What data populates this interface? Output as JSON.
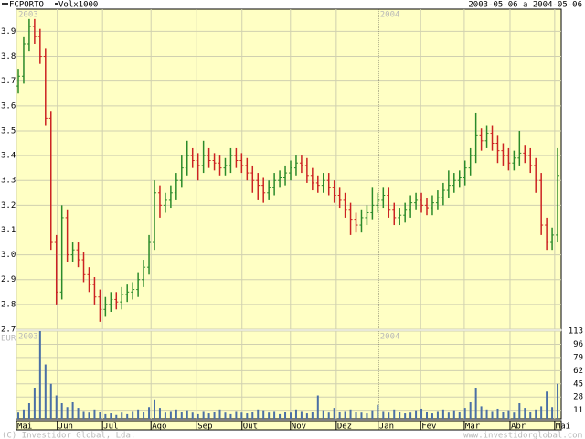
{
  "chart_data": {
    "type": "ohlc",
    "title": "FCPORTO",
    "volume_title": "Volx1000",
    "date_range": "2003-05-06 a 2004-05-06",
    "year_labels": [
      "2003",
      "2004"
    ],
    "currency": "EUR",
    "footer_left": "(C) Investidor Global, Lda.",
    "footer_right": "www.investidorglobal.com",
    "up_color": "#2a8a2a",
    "down_color": "#cc2222",
    "volume_color": "#4a6fa5",
    "grid": true,
    "xlim": [
      0,
      100
    ],
    "year_break": 66.4,
    "xticks": [
      {
        "value": 0,
        "label": "Mai"
      },
      {
        "value": 7.5,
        "label": "Jun"
      },
      {
        "value": 15.8,
        "label": "Jul"
      },
      {
        "value": 24.7,
        "label": "Ago"
      },
      {
        "value": 33.1,
        "label": "Sep"
      },
      {
        "value": 41.4,
        "label": "Out"
      },
      {
        "value": 50.3,
        "label": "Nov"
      },
      {
        "value": 58.7,
        "label": "Dez"
      },
      {
        "value": 66.4,
        "label": "Jan"
      },
      {
        "value": 74.2,
        "label": "Fev"
      },
      {
        "value": 82.2,
        "label": "Mar"
      },
      {
        "value": 90.6,
        "label": "Abr"
      },
      {
        "value": 98.8,
        "label": "Mai"
      }
    ],
    "ylim": [
      2.7,
      3.99
    ],
    "yticks": [
      2.7,
      2.8,
      2.9,
      {
        "value": 3,
        "label": "3.0"
      },
      3.1,
      3.2,
      3.3,
      3.4,
      3.5,
      3.6,
      3.7,
      3.8,
      3.9
    ],
    "y2lim": [
      0,
      113
    ],
    "y2ticks": [
      11,
      28,
      45,
      62,
      79,
      96,
      113
    ],
    "ohlc": [
      [
        3.68,
        3.75,
        3.65,
        3.72
      ],
      [
        3.72,
        3.88,
        3.69,
        3.85
      ],
      [
        3.85,
        3.95,
        3.82,
        3.92
      ],
      [
        3.92,
        3.95,
        3.85,
        3.88
      ],
      [
        3.88,
        3.91,
        3.77,
        3.8
      ],
      [
        3.8,
        3.83,
        3.52,
        3.55
      ],
      [
        3.55,
        3.58,
        3.02,
        3.05
      ],
      [
        3.05,
        3.08,
        2.8,
        2.85
      ],
      [
        2.85,
        3.2,
        2.82,
        3.15
      ],
      [
        3.15,
        3.18,
        2.97,
        3.0
      ],
      [
        3.0,
        3.05,
        2.97,
        3.02
      ],
      [
        3.02,
        3.05,
        2.95,
        2.98
      ],
      [
        2.98,
        3.01,
        2.89,
        2.92
      ],
      [
        2.92,
        2.95,
        2.85,
        2.88
      ],
      [
        2.88,
        2.91,
        2.8,
        2.83
      ],
      [
        2.83,
        2.86,
        2.73,
        2.78
      ],
      [
        2.78,
        2.83,
        2.75,
        2.8
      ],
      [
        2.8,
        2.85,
        2.77,
        2.82
      ],
      [
        2.82,
        2.85,
        2.78,
        2.81
      ],
      [
        2.81,
        2.87,
        2.78,
        2.84
      ],
      [
        2.84,
        2.88,
        2.81,
        2.85
      ],
      [
        2.85,
        2.89,
        2.82,
        2.86
      ],
      [
        2.86,
        2.93,
        2.83,
        2.9
      ],
      [
        2.9,
        2.98,
        2.87,
        2.95
      ],
      [
        2.95,
        3.08,
        2.92,
        3.05
      ],
      [
        3.05,
        3.3,
        3.02,
        3.25
      ],
      [
        3.25,
        3.28,
        3.15,
        3.2
      ],
      [
        3.2,
        3.25,
        3.17,
        3.22
      ],
      [
        3.22,
        3.28,
        3.19,
        3.25
      ],
      [
        3.25,
        3.33,
        3.22,
        3.3
      ],
      [
        3.3,
        3.4,
        3.27,
        3.35
      ],
      [
        3.35,
        3.46,
        3.32,
        3.4
      ],
      [
        3.4,
        3.43,
        3.35,
        3.38
      ],
      [
        3.38,
        3.41,
        3.3,
        3.36
      ],
      [
        3.36,
        3.46,
        3.33,
        3.4
      ],
      [
        3.4,
        3.43,
        3.35,
        3.38
      ],
      [
        3.38,
        3.41,
        3.34,
        3.37
      ],
      [
        3.37,
        3.4,
        3.32,
        3.35
      ],
      [
        3.35,
        3.39,
        3.32,
        3.36
      ],
      [
        3.36,
        3.43,
        3.33,
        3.4
      ],
      [
        3.4,
        3.43,
        3.35,
        3.38
      ],
      [
        3.38,
        3.41,
        3.33,
        3.36
      ],
      [
        3.36,
        3.39,
        3.3,
        3.33
      ],
      [
        3.33,
        3.36,
        3.25,
        3.3
      ],
      [
        3.3,
        3.33,
        3.22,
        3.28
      ],
      [
        3.28,
        3.31,
        3.21,
        3.25
      ],
      [
        3.25,
        3.3,
        3.22,
        3.27
      ],
      [
        3.27,
        3.33,
        3.24,
        3.3
      ],
      [
        3.3,
        3.34,
        3.27,
        3.31
      ],
      [
        3.31,
        3.36,
        3.28,
        3.33
      ],
      [
        3.33,
        3.38,
        3.3,
        3.35
      ],
      [
        3.35,
        3.4,
        3.32,
        3.37
      ],
      [
        3.37,
        3.4,
        3.33,
        3.36
      ],
      [
        3.36,
        3.39,
        3.29,
        3.32
      ],
      [
        3.32,
        3.35,
        3.26,
        3.29
      ],
      [
        3.29,
        3.32,
        3.25,
        3.28
      ],
      [
        3.28,
        3.33,
        3.25,
        3.3
      ],
      [
        3.3,
        3.33,
        3.24,
        3.27
      ],
      [
        3.27,
        3.3,
        3.21,
        3.24
      ],
      [
        3.24,
        3.27,
        3.19,
        3.22
      ],
      [
        3.22,
        3.25,
        3.15,
        3.18
      ],
      [
        3.18,
        3.21,
        3.08,
        3.14
      ],
      [
        3.14,
        3.17,
        3.09,
        3.12
      ],
      [
        3.12,
        3.18,
        3.09,
        3.15
      ],
      [
        3.15,
        3.2,
        3.12,
        3.17
      ],
      [
        3.17,
        3.27,
        3.14,
        3.2
      ],
      [
        3.2,
        3.25,
        3.17,
        3.22
      ],
      [
        3.22,
        3.27,
        3.19,
        3.24
      ],
      [
        3.24,
        3.27,
        3.15,
        3.18
      ],
      [
        3.18,
        3.21,
        3.12,
        3.15
      ],
      [
        3.15,
        3.19,
        3.12,
        3.16
      ],
      [
        3.16,
        3.21,
        3.13,
        3.18
      ],
      [
        3.18,
        3.24,
        3.15,
        3.21
      ],
      [
        3.21,
        3.25,
        3.18,
        3.22
      ],
      [
        3.22,
        3.25,
        3.17,
        3.2
      ],
      [
        3.2,
        3.23,
        3.16,
        3.19
      ],
      [
        3.19,
        3.24,
        3.16,
        3.21
      ],
      [
        3.21,
        3.26,
        3.18,
        3.23
      ],
      [
        3.23,
        3.29,
        3.2,
        3.26
      ],
      [
        3.26,
        3.34,
        3.23,
        3.28
      ],
      [
        3.28,
        3.33,
        3.25,
        3.3
      ],
      [
        3.3,
        3.34,
        3.27,
        3.31
      ],
      [
        3.31,
        3.38,
        3.28,
        3.35
      ],
      [
        3.35,
        3.43,
        3.32,
        3.4
      ],
      [
        3.4,
        3.57,
        3.37,
        3.48
      ],
      [
        3.48,
        3.51,
        3.42,
        3.46
      ],
      [
        3.46,
        3.52,
        3.43,
        3.49
      ],
      [
        3.49,
        3.52,
        3.42,
        3.45
      ],
      [
        3.45,
        3.48,
        3.37,
        3.42
      ],
      [
        3.42,
        3.45,
        3.36,
        3.4
      ],
      [
        3.4,
        3.43,
        3.34,
        3.37
      ],
      [
        3.37,
        3.42,
        3.34,
        3.39
      ],
      [
        3.39,
        3.5,
        3.36,
        3.41
      ],
      [
        3.41,
        3.44,
        3.37,
        3.4
      ],
      [
        3.4,
        3.43,
        3.33,
        3.36
      ],
      [
        3.36,
        3.39,
        3.25,
        3.3
      ],
      [
        3.3,
        3.33,
        3.08,
        3.12
      ],
      [
        3.12,
        3.15,
        3.02,
        3.05
      ],
      [
        3.05,
        3.11,
        3.02,
        3.08
      ],
      [
        3.08,
        3.43,
        3.05,
        3.32
      ]
    ],
    "volume": [
      8,
      12,
      20,
      40,
      113,
      70,
      45,
      30,
      20,
      15,
      22,
      14,
      10,
      8,
      12,
      9,
      6,
      7,
      5,
      8,
      6,
      10,
      12,
      9,
      15,
      25,
      14,
      8,
      10,
      12,
      9,
      11,
      8,
      6,
      10,
      7,
      9,
      12,
      8,
      6,
      10,
      8,
      7,
      9,
      12,
      11,
      8,
      10,
      6,
      9,
      8,
      12,
      10,
      7,
      9,
      30,
      11,
      8,
      14,
      9,
      10,
      12,
      9,
      8,
      7,
      11,
      18,
      10,
      8,
      12,
      9,
      7,
      8,
      11,
      13,
      9,
      7,
      10,
      12,
      8,
      11,
      9,
      14,
      22,
      40,
      16,
      12,
      10,
      13,
      9,
      11,
      8,
      20,
      14,
      9,
      12,
      16,
      35,
      15,
      45
    ]
  }
}
